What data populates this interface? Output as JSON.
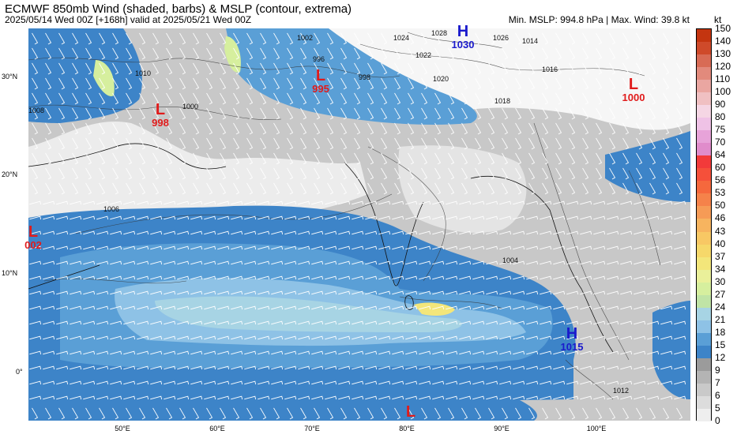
{
  "header": {
    "title": "ECMWF 850mb Wind (shaded, barbs) & MSLP (contour, extrema)",
    "subtitle": "2025/05/14 Wed 00Z [+168h] valid at 2025/05/21 Wed 00Z",
    "stats": "Min. MSLP: 994.8 hPa | Max. Wind: 39.8 kt"
  },
  "colorbar": {
    "unit": "kt",
    "ticks": [
      "150",
      "140",
      "130",
      "120",
      "110",
      "100",
      "90",
      "80",
      "75",
      "70",
      "64",
      "60",
      "56",
      "53",
      "50",
      "46",
      "43",
      "40",
      "37",
      "34",
      "30",
      "27",
      "24",
      "21",
      "18",
      "15",
      "12",
      "9",
      "7",
      "6",
      "5",
      "0"
    ],
    "colors": [
      "#c43510",
      "#cf4a2a",
      "#d86b55",
      "#e28a7c",
      "#eaa6a1",
      "#f0c0c2",
      "#f5d6e4",
      "#efc2e6",
      "#e7a3d9",
      "#e08ccb",
      "#f23a3a",
      "#f5503a",
      "#f5683d",
      "#f5824a",
      "#f69b56",
      "#f7b45f",
      "#f8c864",
      "#f6d86a",
      "#f3e67a",
      "#eaf09a",
      "#d6ef9e",
      "#c0e4a6",
      "#a7d4e4",
      "#8ec2e6",
      "#5a9fd6",
      "#3d84c8",
      "#9b9b9b",
      "#b4b4b4",
      "#c9c9c9",
      "#dcdcdc",
      "#eeeeee"
    ]
  },
  "axes": {
    "lat_labels": [
      "30°N",
      "20°N",
      "10°N",
      "0°"
    ],
    "lon_labels": [
      "50°E",
      "60°E",
      "70°E",
      "80°E",
      "90°E",
      "100°E"
    ]
  },
  "pressure_systems": [
    {
      "type": "H",
      "value": "1030",
      "color": "#1a1acc"
    },
    {
      "type": "L",
      "value": "995",
      "color": "#e01b1b"
    },
    {
      "type": "L",
      "value": "998",
      "color": "#e01b1b"
    },
    {
      "type": "L",
      "value": "1000",
      "color": "#e01b1b"
    },
    {
      "type": "L",
      "value": "002",
      "color": "#e01b1b"
    },
    {
      "type": "H",
      "value": "1015",
      "color": "#1a1acc"
    },
    {
      "type": "L",
      "value": "",
      "color": "#e01b1b"
    }
  ],
  "isobar_labels": [
    "1002",
    "1024",
    "1028",
    "1014",
    "1016",
    "1008",
    "1010",
    "1006",
    "1004",
    "1022",
    "1020",
    "1018",
    "998",
    "1012",
    "1000",
    "996",
    "1026"
  ]
}
